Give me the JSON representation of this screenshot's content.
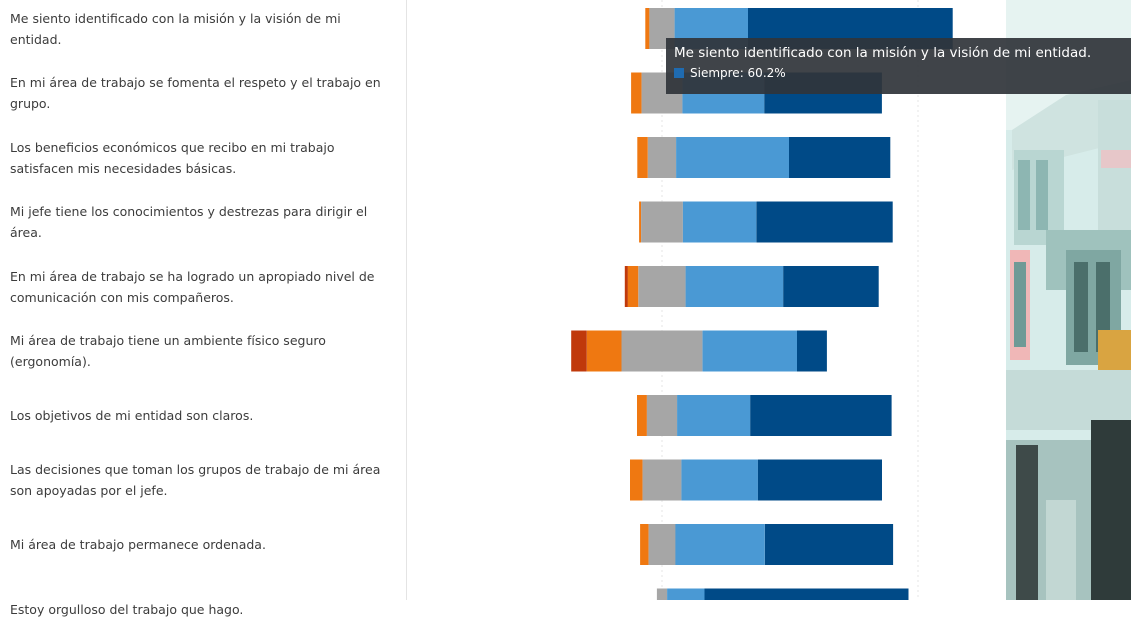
{
  "chart_data": {
    "type": "bar",
    "orientation": "horizontal",
    "stacked": true,
    "categories": [
      "Me siento identificado con la misión y la visión de mi entidad.",
      "En mi área de trabajo se fomenta el respeto y el trabajo en grupo.",
      "Los beneficios económicos que recibo en mi trabajo satisfacen mis necesidades básicas.",
      "Mi jefe tiene los conocimientos y destrezas para dirigir el área.",
      "En mi área de trabajo se ha logrado un apropiado nivel de comunicación con mis compañeros.",
      "Mi área de trabajo tiene un ambiente físico seguro (ergonomía).",
      "Los objetivos de mi entidad son claros.",
      "Las decisiones que toman los grupos de trabajo de mi área son apoyadas por el jefe.",
      "Mi área de trabajo permanece ordenada.",
      "Estoy orgulloso del trabajo que hago."
    ],
    "series": [
      {
        "color": "#c0390b",
        "values": [
          0,
          0,
          0,
          0,
          0.9,
          4.6,
          0,
          0,
          0,
          0
        ]
      },
      {
        "color": "#ef7811",
        "values": [
          1.2,
          3.1,
          3.1,
          0.6,
          3.1,
          10.2,
          2.9,
          3.7,
          2.5,
          0
        ]
      },
      {
        "color": "#a6a6a6",
        "values": [
          7.4,
          12.0,
          8.3,
          12.3,
          13.9,
          23.8,
          8.9,
          11.4,
          7.9,
          3.0
        ]
      },
      {
        "color": "#4a99d4",
        "values": [
          21.6,
          24.1,
          33.2,
          21.6,
          28.7,
          27.8,
          21.5,
          22.5,
          26.3,
          11.0
        ]
      },
      {
        "name": "Siempre",
        "color": "#004a87",
        "values": [
          60.2,
          34.6,
          29.8,
          40.1,
          28.1,
          8.8,
          41.6,
          36.5,
          37.7,
          60.0
        ]
      }
    ],
    "grid": true,
    "legend": "none"
  },
  "tooltip": {
    "title": "Me siento identificado con la misión y la visión de mi entidad.",
    "value": "Siempre: 60.2%",
    "swatch_color": "#1f6bb0"
  }
}
